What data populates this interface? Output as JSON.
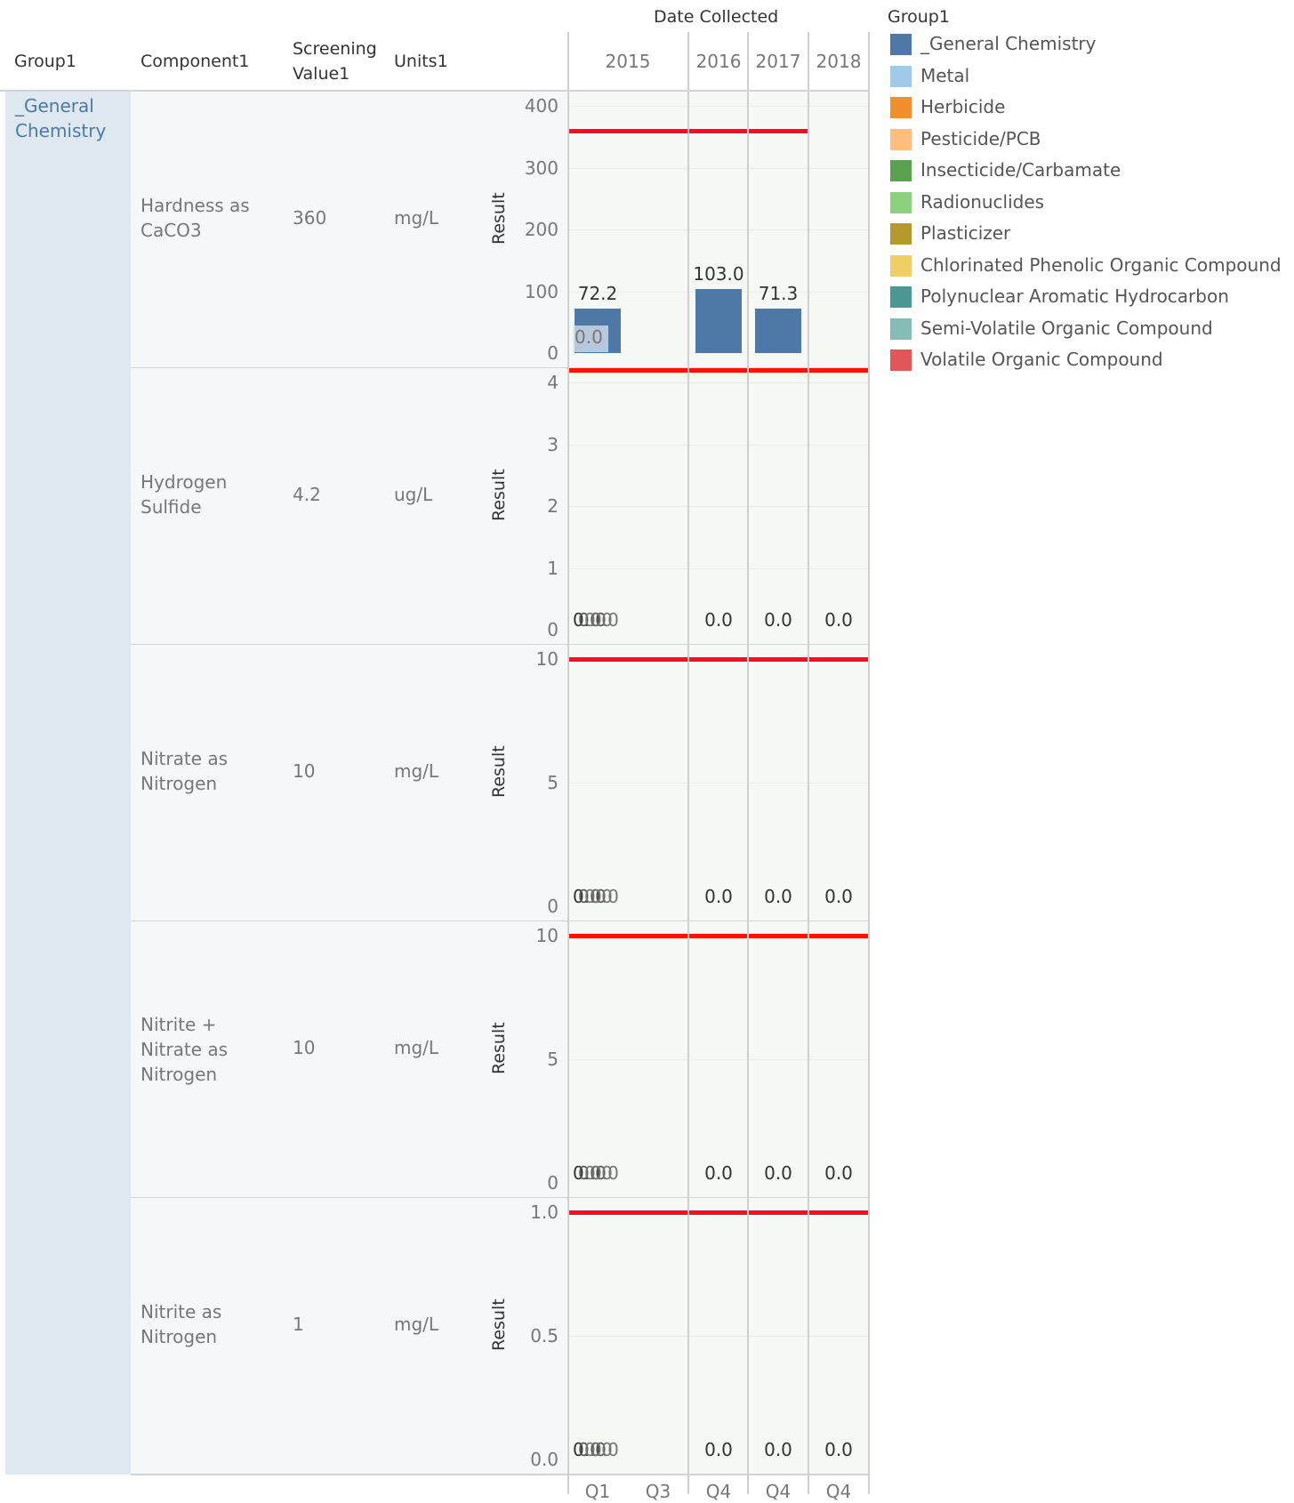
{
  "header": {
    "group": "Group1",
    "component": "Component1",
    "screening_line1": "Screening",
    "screening_line2": "Value1",
    "units": "Units1",
    "date_collected": "Date Collected",
    "years": [
      "2015",
      "2016",
      "2017",
      "2018"
    ],
    "quarters": [
      "Q1",
      "Q3",
      "Q4",
      "Q4",
      "Q4"
    ]
  },
  "group_value": "_General Chemistry",
  "legend": {
    "title": "Group1",
    "items": [
      {
        "label": "_General Chemistry",
        "color": "#4e79a7"
      },
      {
        "label": "Metal",
        "color": "#a0cbe8"
      },
      {
        "label": "Herbicide",
        "color": "#f28e2b"
      },
      {
        "label": "Pesticide/PCB",
        "color": "#ffbe7d"
      },
      {
        "label": "Insecticide/Carbamate",
        "color": "#59a14f"
      },
      {
        "label": "Radionuclides",
        "color": "#8cd17d"
      },
      {
        "label": "Plasticizer",
        "color": "#b6992d"
      },
      {
        "label": "Chlorinated Phenolic Organic Compound",
        "color": "#f1ce63"
      },
      {
        "label": "Polynuclear Aromatic Hydrocarbon",
        "color": "#499894"
      },
      {
        "label": "Semi-Volatile Organic Compound",
        "color": "#86bcb6"
      },
      {
        "label": "Volatile Organic Compound",
        "color": "#e15759"
      }
    ]
  },
  "colors": {
    "bar": "#4e79a7",
    "reference_line": "#ff1010",
    "pane_bg": "#f6f8f3"
  },
  "rows": [
    {
      "component_lines": [
        "Hardness as",
        "CaCO3"
      ],
      "screening_value": "360",
      "units": "mg/L"
    },
    {
      "component_lines": [
        "Hydrogen",
        "Sulfide"
      ],
      "screening_value": "4.2",
      "units": "ug/L"
    },
    {
      "component_lines": [
        "Nitrate as",
        "Nitrogen"
      ],
      "screening_value": "10",
      "units": "mg/L"
    },
    {
      "component_lines": [
        "Nitrite +",
        "Nitrate as",
        "Nitrogen"
      ],
      "screening_value": "10",
      "units": "mg/L"
    },
    {
      "component_lines": [
        "Nitrite as",
        "Nitrogen"
      ],
      "screening_value": "1",
      "units": "mg/L"
    }
  ],
  "chart_data": {
    "type": "bar",
    "y_axis_label": "Result",
    "x_axis_title": "Date Collected",
    "columns": [
      "2015 Q1",
      "2015 Q3",
      "2016 Q4",
      "2017 Q4",
      "2018 Q4"
    ],
    "panels": [
      {
        "component": "Hardness as CaCO3",
        "ylim": [
          0,
          400
        ],
        "ticks": [
          0,
          100,
          200,
          300,
          400
        ],
        "screening_value": 360,
        "values": [
          72.2,
          null,
          103.0,
          71.3,
          null
        ],
        "labels": [
          "72.2",
          "",
          "103.0",
          "71.3",
          ""
        ],
        "overlay_label": "0.0",
        "reference_line_columns": [
          0,
          3
        ]
      },
      {
        "component": "Hydrogen Sulfide",
        "ylim": [
          0,
          4.2
        ],
        "ticks": [
          0,
          1,
          2,
          3,
          4
        ],
        "screening_value": 4.2,
        "values": [
          0.0,
          null,
          0.0,
          0.0,
          0.0
        ],
        "labels": [
          "0.0",
          "",
          "0.0",
          "0.0",
          "0.0"
        ],
        "overlap_labels": [
          "0.0",
          "0.0",
          "0.0"
        ],
        "reference_line_columns": [
          0,
          4
        ]
      },
      {
        "component": "Nitrate as Nitrogen",
        "ylim": [
          0,
          10
        ],
        "ticks": [
          0,
          5,
          10
        ],
        "screening_value": 10,
        "values": [
          0.0,
          null,
          0.0,
          0.0,
          0.0
        ],
        "labels": [
          "0.0",
          "",
          "0.0",
          "0.0",
          "0.0"
        ],
        "overlap_labels": [
          "0.0",
          "0.0",
          "0.0"
        ],
        "reference_line_columns": [
          0,
          4
        ]
      },
      {
        "component": "Nitrite + Nitrate as Nitrogen",
        "ylim": [
          0,
          10
        ],
        "ticks": [
          0,
          5,
          10
        ],
        "screening_value": 10,
        "values": [
          0.0,
          null,
          0.0,
          0.0,
          0.0
        ],
        "labels": [
          "0.0",
          "",
          "0.0",
          "0.0",
          "0.0"
        ],
        "overlap_labels": [
          "0.0",
          "0.0",
          "0.0"
        ],
        "reference_line_columns": [
          0,
          4
        ]
      },
      {
        "component": "Nitrite as Nitrogen",
        "ylim": [
          0,
          1.0
        ],
        "ticks": [
          0.0,
          0.5,
          1.0
        ],
        "tick_labels": [
          "0.0",
          "0.5",
          "1.0"
        ],
        "screening_value": 1,
        "values": [
          0.0,
          null,
          0.0,
          0.0,
          0.0
        ],
        "labels": [
          "0.0",
          "",
          "0.0",
          "0.0",
          "0.0"
        ],
        "overlap_labels": [
          "0.0",
          "0.0",
          "0.0"
        ],
        "reference_line_columns": [
          0,
          4
        ]
      }
    ]
  }
}
